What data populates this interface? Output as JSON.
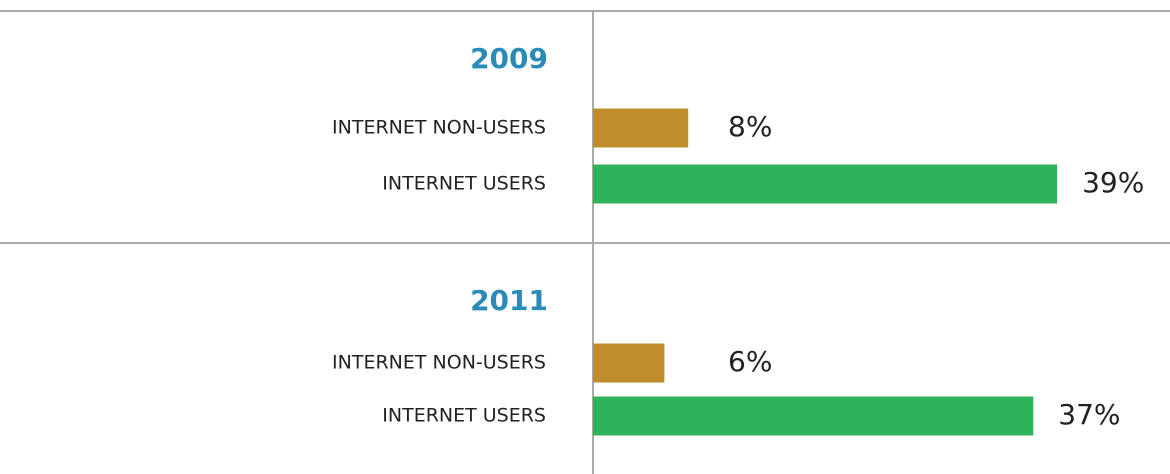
{
  "chart_data": [
    {
      "type": "bar",
      "horizontal": true,
      "title": "2009",
      "categories": [
        "INTERNET NON-USERS",
        "INTERNET USERS"
      ],
      "values": [
        8,
        39
      ],
      "value_labels": [
        "8%",
        "39%"
      ],
      "colors": [
        "#c08c2c",
        "#2db45a"
      ]
    },
    {
      "type": "bar",
      "horizontal": true,
      "title": "2011",
      "categories": [
        "INTERNET NON-USERS",
        "INTERNET USERS"
      ],
      "values": [
        6,
        37
      ],
      "value_labels": [
        "6%",
        "37%"
      ],
      "colors": [
        "#c08c2c",
        "#2db45a"
      ]
    }
  ]
}
